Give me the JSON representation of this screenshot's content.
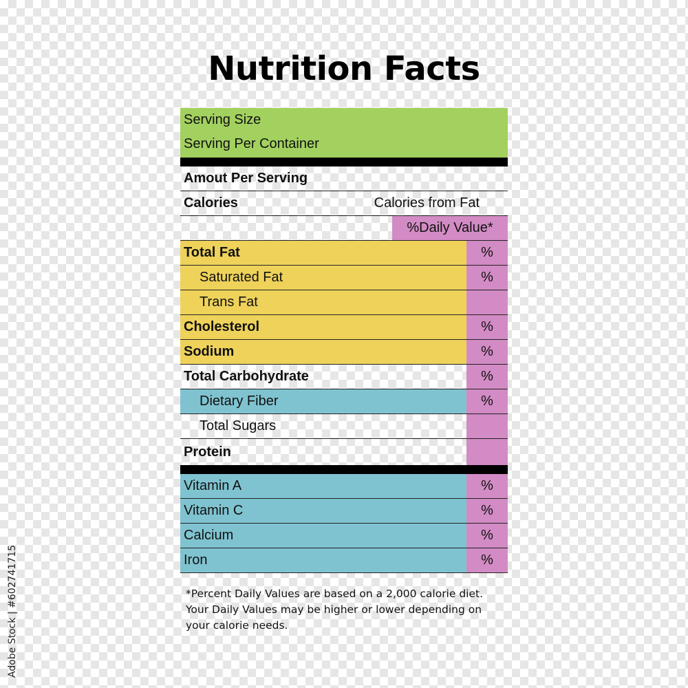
{
  "title": "Nutrition Facts",
  "serving": {
    "size_label": "Serving Size",
    "per_container_label": "Serving Per Container"
  },
  "amount_per_serving": "Amout Per Serving",
  "calories": {
    "label": "Calories",
    "from_fat_label": "Calories from Fat"
  },
  "daily_value_header": "%Daily Value*",
  "nutrients": [
    {
      "label": "Total Fat",
      "pct": "%"
    },
    {
      "label": "Saturated Fat",
      "pct": "%"
    },
    {
      "label": "Trans Fat",
      "pct": ""
    },
    {
      "label": "Cholesterol",
      "pct": "%"
    },
    {
      "label": "Sodium",
      "pct": "%"
    },
    {
      "label": "Total Carbohydrate",
      "pct": "%"
    },
    {
      "label": "Dietary Fiber",
      "pct": "%"
    },
    {
      "label": "Total Sugars",
      "pct": ""
    },
    {
      "label": "Protein",
      "pct": ""
    }
  ],
  "vitamins": [
    {
      "label": "Vitamin A",
      "pct": "%"
    },
    {
      "label": "Vitamin C",
      "pct": "%"
    },
    {
      "label": "Calcium",
      "pct": "%"
    },
    {
      "label": "Iron",
      "pct": "%"
    }
  ],
  "footnote": {
    "line1": "*Percent Daily Values are based on a 2,000 calorie diet.",
    "line2": "Your Daily Values may be higher or lower depending on",
    "line3": "your calorie needs."
  },
  "stock_id": "Adobe Stock | #602741715",
  "colors": {
    "serving_green": "#a3d15f",
    "fat_yellow": "#eed25a",
    "vitamin_blue": "#7fc3d0",
    "daily_value_pink": "#d28bc4"
  }
}
